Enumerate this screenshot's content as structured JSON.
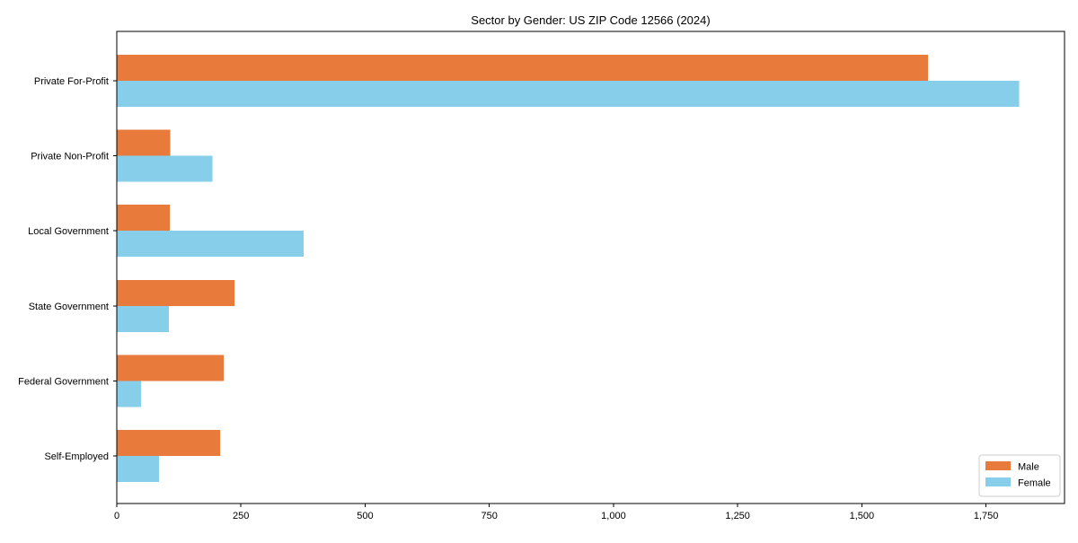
{
  "chart_data": {
    "type": "bar",
    "orientation": "horizontal",
    "title": "Sector by Gender: US ZIP Code 12566 (2024)",
    "categories": [
      "Private For-Profit",
      "Private Non-Profit",
      "Local Government",
      "State Government",
      "Federal Government",
      "Self-Employed"
    ],
    "series": [
      {
        "name": "Male",
        "color": "#E87A3C",
        "values": [
          1633,
          108,
          107,
          237,
          215,
          208
        ]
      },
      {
        "name": "Female",
        "color": "#87CEEB",
        "values": [
          1817,
          193,
          376,
          105,
          49,
          85
        ]
      }
    ],
    "xlabel": "",
    "ylabel": "",
    "xlim": [
      0,
      1908
    ],
    "x_ticks": [
      0,
      250,
      500,
      750,
      1000,
      1250,
      1500,
      1750
    ],
    "x_tick_labels": [
      "0",
      "250",
      "500",
      "750",
      "1,000",
      "1,250",
      "1,500",
      "1,750"
    ],
    "grid": false,
    "legend": {
      "position": "lower right",
      "entries": [
        "Male",
        "Female"
      ]
    },
    "axis_color": "#000000",
    "legend_border_color": "#cccccc",
    "background": "#ffffff"
  }
}
